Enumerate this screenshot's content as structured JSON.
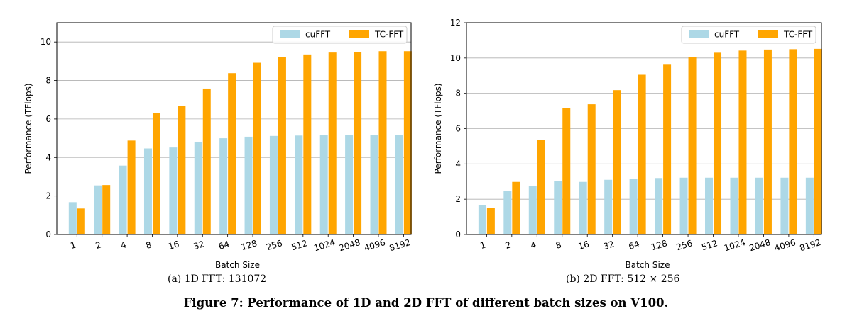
{
  "colors": {
    "cufft": "#add8e6",
    "tcfft": "#ffa500",
    "grid": "#b0b0b0"
  },
  "chart_data": [
    {
      "type": "bar",
      "title": "",
      "xlabel": "Batch Size",
      "ylabel": "Performance (TFlops)",
      "ylim": [
        0,
        11
      ],
      "yticks": [
        0,
        2,
        4,
        6,
        8,
        10
      ],
      "grid": "horizontal",
      "legend_position": "top-right",
      "categories": [
        "1",
        "2",
        "4",
        "8",
        "16",
        "32",
        "64",
        "128",
        "256",
        "512",
        "1024",
        "2048",
        "4096",
        "8192"
      ],
      "series": [
        {
          "name": "cuFFT",
          "values": [
            1.68,
            2.55,
            3.58,
            4.47,
            4.52,
            4.82,
            5.0,
            5.08,
            5.12,
            5.14,
            5.16,
            5.16,
            5.17,
            5.16
          ]
        },
        {
          "name": "TC-FFT",
          "values": [
            1.35,
            2.57,
            4.88,
            6.3,
            6.68,
            7.58,
            8.38,
            8.92,
            9.2,
            9.35,
            9.45,
            9.48,
            9.52,
            9.52
          ]
        }
      ],
      "caption": "(a)  1D FFT: 131072"
    },
    {
      "type": "bar",
      "title": "",
      "xlabel": "Batch Size",
      "ylabel": "Performance (TFlops)",
      "ylim": [
        0,
        12
      ],
      "yticks": [
        0,
        2,
        4,
        6,
        8,
        10,
        12
      ],
      "grid": "horizontal",
      "legend_position": "top-right",
      "categories": [
        "1",
        "2",
        "4",
        "8",
        "16",
        "32",
        "64",
        "128",
        "256",
        "512",
        "1024",
        "2048",
        "4096",
        "8192"
      ],
      "series": [
        {
          "name": "cuFFT",
          "values": [
            1.68,
            2.45,
            2.75,
            3.02,
            2.98,
            3.1,
            3.17,
            3.2,
            3.22,
            3.22,
            3.22,
            3.22,
            3.22,
            3.22
          ]
        },
        {
          "name": "TC-FFT",
          "values": [
            1.5,
            2.98,
            5.35,
            7.15,
            7.38,
            8.18,
            9.05,
            9.62,
            10.05,
            10.3,
            10.42,
            10.48,
            10.5,
            10.52
          ]
        }
      ],
      "caption": "(b)  2D FFT: 512 × 256"
    }
  ],
  "figure_caption": "Figure 7: Performance of 1D and 2D FFT of different batch sizes on V100."
}
